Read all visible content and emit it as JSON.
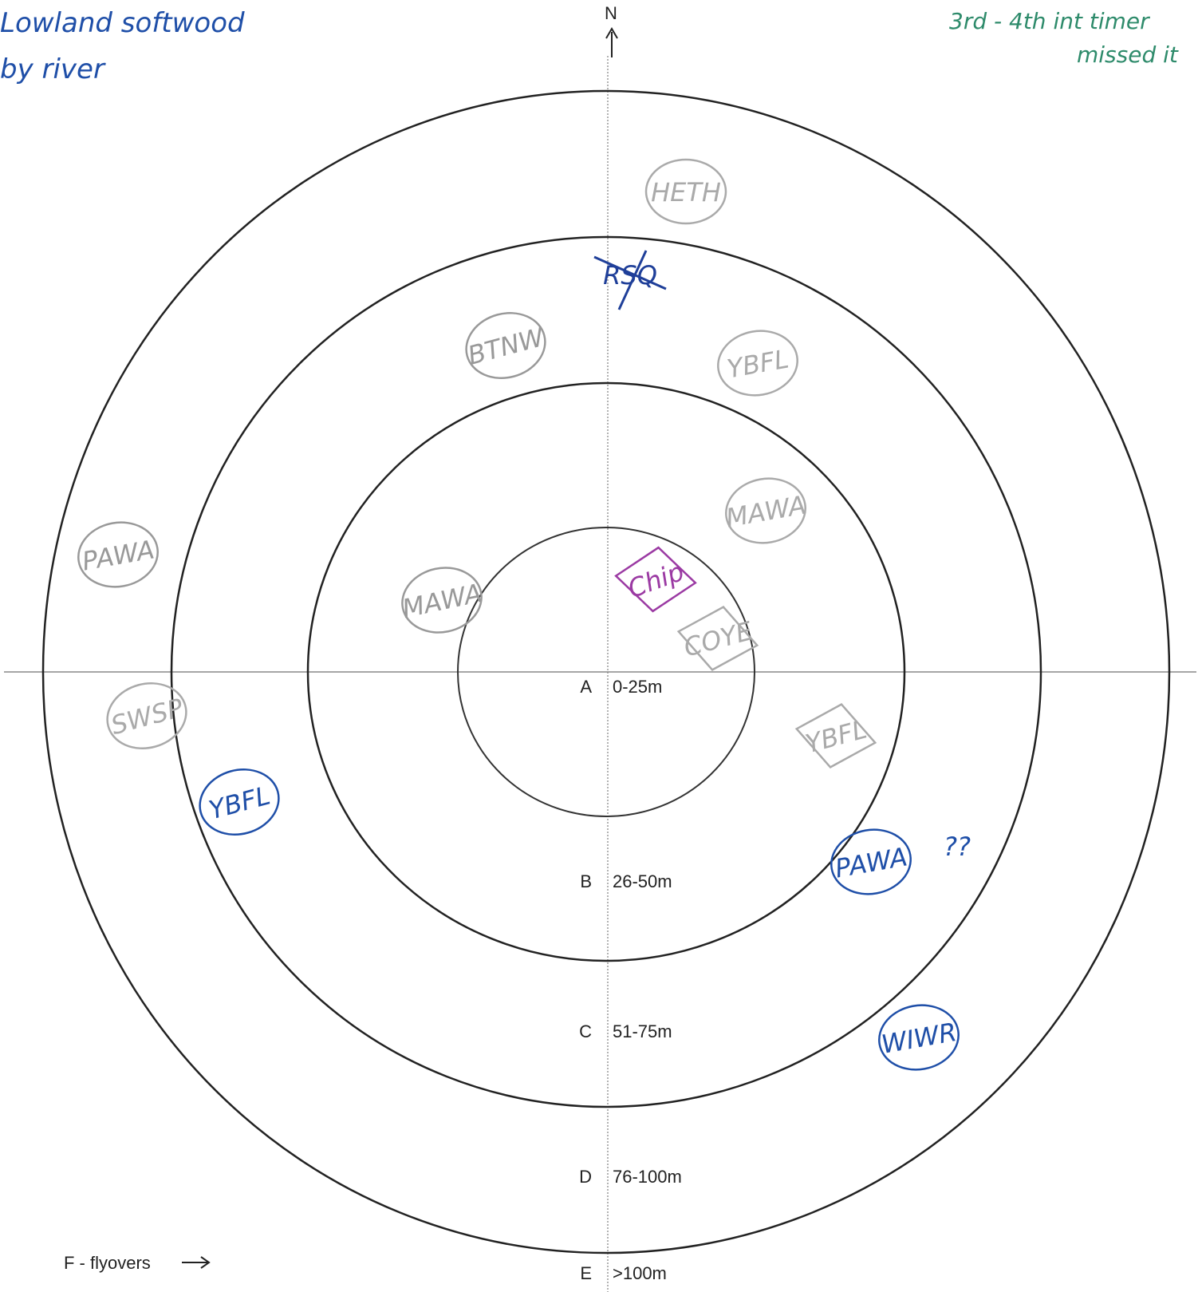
{
  "header": {
    "north": "N",
    "note_left": [
      "Lowland softwood",
      "by river"
    ],
    "note_right": [
      "3rd - 4th int timer",
      "missed it"
    ]
  },
  "rings": [
    {
      "letter": "A",
      "range": "0-25m"
    },
    {
      "letter": "B",
      "range": "26-50m"
    },
    {
      "letter": "C",
      "range": "51-75m"
    },
    {
      "letter": "D",
      "range": "76-100m"
    },
    {
      "letter": "E",
      "range": ">100m"
    }
  ],
  "flyovers": "F - flyovers",
  "observations": [
    {
      "label": "HETH",
      "color": "#aaaaaa",
      "shape": "oval"
    },
    {
      "label": "RSQ",
      "color": "#1f3f99",
      "shape": "crossed"
    },
    {
      "label": "BTNW",
      "color": "#999999",
      "shape": "oval"
    },
    {
      "label": "YBFL",
      "color": "#aaaaaa",
      "shape": "oval"
    },
    {
      "label": "MAWA",
      "color": "#aaaaaa",
      "shape": "oval"
    },
    {
      "label": "PAWA",
      "color": "#999999",
      "shape": "oval"
    },
    {
      "label": "MAWA",
      "color": "#999999",
      "shape": "oval"
    },
    {
      "label": "Chip",
      "color": "#9b3aa3",
      "shape": "diamond"
    },
    {
      "label": "COYE",
      "color": "#aaaaaa",
      "shape": "diamond"
    },
    {
      "label": "SWSP",
      "color": "#aaaaaa",
      "shape": "oval"
    },
    {
      "label": "YBFL",
      "color": "#aaaaaa",
      "shape": "diamond"
    },
    {
      "label": "YBFL",
      "color": "#1f4fa8",
      "shape": "oval"
    },
    {
      "label": "PAWA",
      "color": "#1f4fa8",
      "shape": "oval"
    },
    {
      "label": "??",
      "color": "#1f4fa8",
      "shape": "none"
    },
    {
      "label": "WIWR",
      "color": "#1f4fa8",
      "shape": "oval"
    }
  ]
}
